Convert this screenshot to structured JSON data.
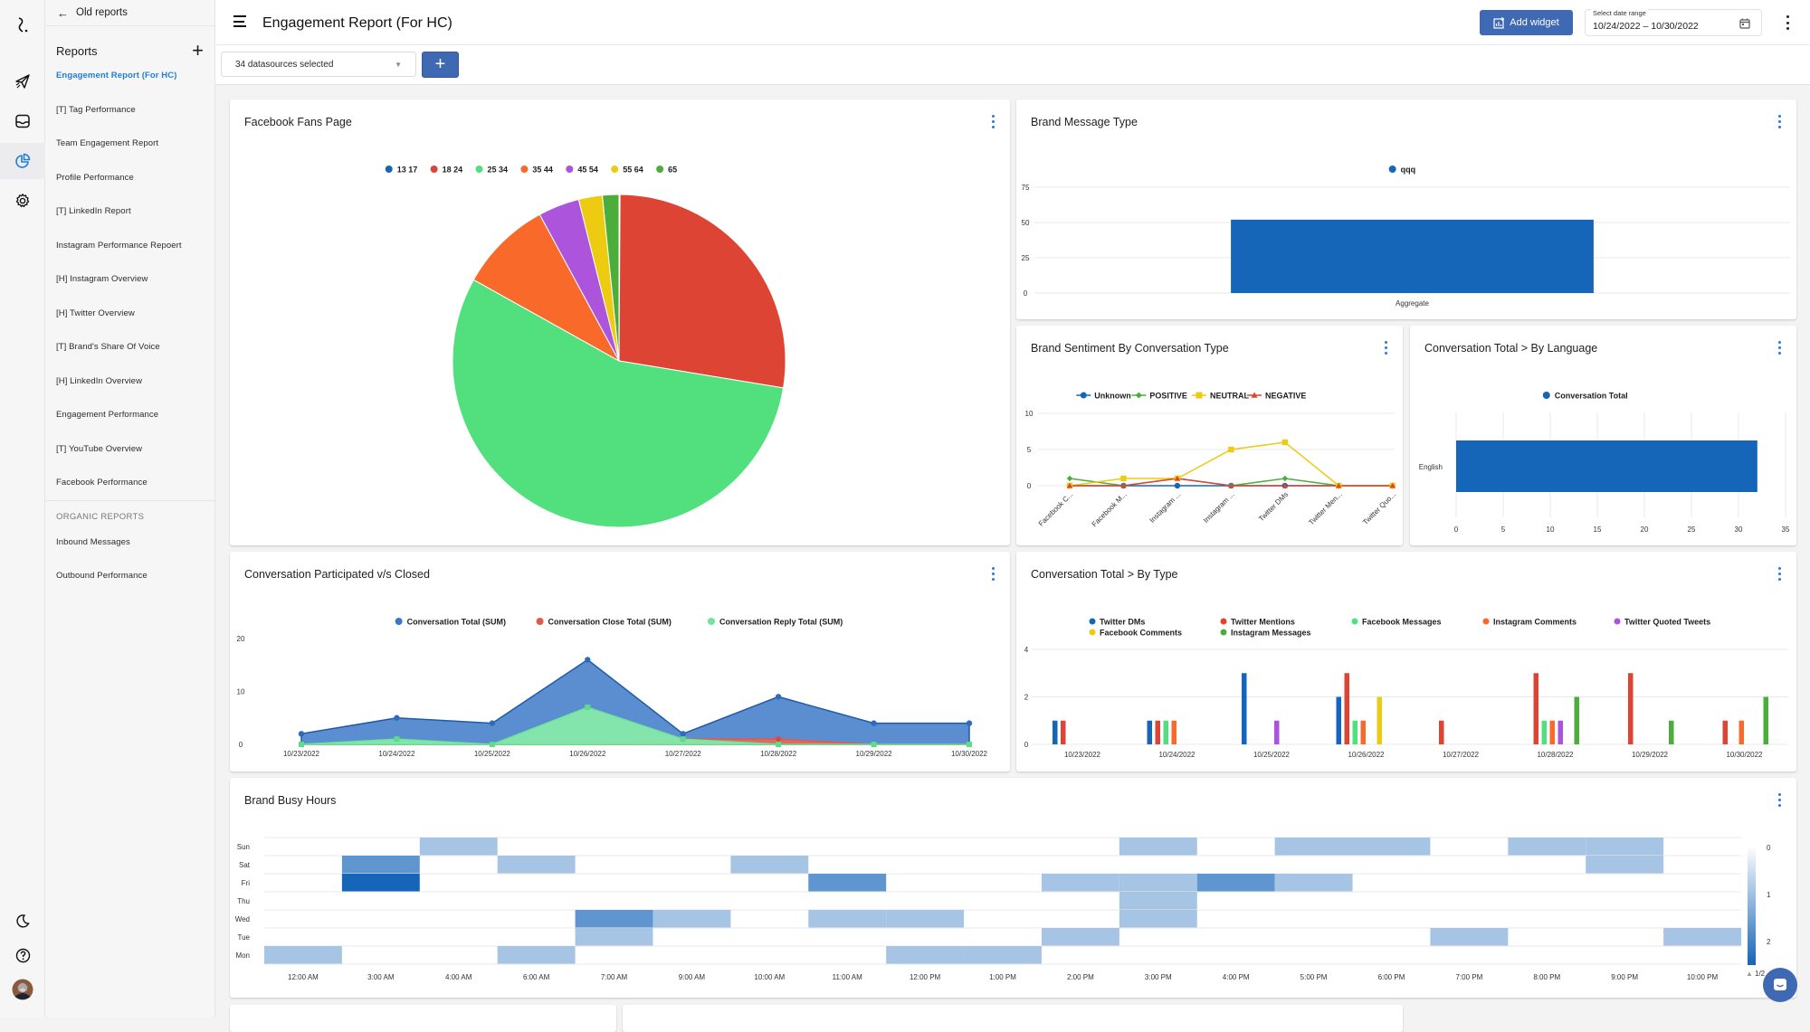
{
  "rail": {
    "logo": "logo-icon",
    "items": [
      {
        "icon": "paper-plane-icon",
        "label": "Publish"
      },
      {
        "icon": "inbox-icon",
        "label": "Inbox"
      },
      {
        "icon": "pie-chart-icon",
        "label": "Reports",
        "active": true
      },
      {
        "icon": "gear-icon",
        "label": "Settings"
      }
    ],
    "bottom": [
      {
        "icon": "moon-icon",
        "label": "Dark mode"
      },
      {
        "icon": "help-icon",
        "label": "Help"
      },
      {
        "icon": "avatar",
        "label": "User profile"
      }
    ]
  },
  "subnav": {
    "back_label": "Old reports",
    "reports_heading": "Reports",
    "reports": [
      {
        "label": "Engagement Report (For HC)",
        "active": true
      },
      {
        "label": "[T] Tag Performance"
      },
      {
        "label": "Team Engagement Report"
      },
      {
        "label": "Profile Performance"
      },
      {
        "label": "[T] LinkedIn Report"
      },
      {
        "label": "Instagram Performance Repoert"
      },
      {
        "label": "[H] Instagram Overview"
      },
      {
        "label": "[H] Twitter Overview"
      },
      {
        "label": "[T] Brand's Share Of Voice"
      },
      {
        "label": "[H] LinkedIn Overview"
      },
      {
        "label": "Engagement Performance"
      },
      {
        "label": "[T] YouTube Overview"
      },
      {
        "label": "Facebook Performance"
      }
    ],
    "organic_heading": "ORGANIC REPORTS",
    "organic": [
      {
        "label": "Inbound Messages"
      },
      {
        "label": "Outbound Performance"
      }
    ]
  },
  "header": {
    "title": "Engagement Report (For HC)",
    "add_widget_label": "Add widget",
    "date_range_label": "Select date range",
    "date_range_value": "10/24/2022 – 10/30/2022"
  },
  "toolbar": {
    "datasources_value": "34 datasources selected",
    "add_label": "+"
  },
  "colors": {
    "accent": "#3f69b3",
    "active_link": "#1e7ed8",
    "blue": "#1565b8",
    "red": "#dd4433",
    "light_green": "#52e07f",
    "orange": "#f8692a",
    "purple": "#ac55dc",
    "yellow": "#eccb10",
    "green": "#4cae3a"
  },
  "widgets": {
    "fans": {
      "title": "Facebook Fans Page"
    },
    "msgtype": {
      "title": "Brand Message Type"
    },
    "sentiment": {
      "title": "Brand Sentiment By Conversation Type"
    },
    "language": {
      "title": "Conversation Total > By Language"
    },
    "participated": {
      "title": "Conversation Participated v/s Closed"
    },
    "bytype": {
      "title": "Conversation Total > By Type"
    },
    "busy": {
      "title": "Brand Busy Hours",
      "legend_pager": "1/2"
    }
  },
  "chart_data": [
    {
      "id": "fans",
      "type": "pie",
      "title": "Facebook Fans Page",
      "legend_position": "top",
      "categories": [
        "13 17",
        "18 24",
        "25 34",
        "35 44",
        "45 54",
        "55 64",
        "65"
      ],
      "colors": [
        "#1565b8",
        "#dd4433",
        "#52e07f",
        "#f8692a",
        "#ac55dc",
        "#eccb10",
        "#4cae3a"
      ],
      "values": [
        0.1,
        27.5,
        55.5,
        9.0,
        4.0,
        2.3,
        1.6
      ]
    },
    {
      "id": "msgtype",
      "type": "bar",
      "title": "Brand Message Type",
      "categories": [
        "Aggregate"
      ],
      "series": [
        {
          "name": "qqq",
          "color": "#1565b8",
          "values": [
            52
          ]
        }
      ],
      "yticks": [
        0,
        25,
        50,
        75
      ],
      "ylim": [
        0,
        80
      ],
      "grid": true,
      "legend_position": "top"
    },
    {
      "id": "sentiment",
      "type": "line",
      "title": "Brand Sentiment By Conversation Type",
      "categories": [
        "Facebook C...",
        "Facebook M...",
        "Instagram ...",
        "Instagram ...",
        "Twitter DMs",
        "Twitter Men...",
        "Twitter Quo..."
      ],
      "series": [
        {
          "name": "Unknown",
          "color": "#1565b8",
          "marker": "circle",
          "values": [
            0,
            0,
            0,
            0,
            0,
            0,
            0
          ]
        },
        {
          "name": "POSITIVE",
          "color": "#4cae3a",
          "marker": "diamond",
          "values": [
            1,
            0,
            1,
            0,
            1,
            0,
            0
          ]
        },
        {
          "name": "NEUTRAL",
          "color": "#eccb10",
          "marker": "square",
          "values": [
            0,
            1,
            1,
            5,
            6,
            0,
            0
          ]
        },
        {
          "name": "NEGATIVE",
          "color": "#dd4433",
          "marker": "triangle",
          "values": [
            0,
            0,
            1,
            0,
            0,
            0,
            0
          ]
        }
      ],
      "yticks": [
        0,
        5,
        10
      ],
      "ylim": [
        0,
        10
      ],
      "grid": true,
      "legend_position": "top"
    },
    {
      "id": "language",
      "type": "bar",
      "orientation": "horizontal",
      "title": "Conversation Total > By Language",
      "categories": [
        "English"
      ],
      "series": [
        {
          "name": "Conversation Total",
          "color": "#1565b8",
          "values": [
            32
          ]
        }
      ],
      "xticks": [
        0,
        5,
        10,
        15,
        20,
        25,
        30,
        35
      ],
      "xlim": [
        0,
        35
      ],
      "grid": true,
      "legend_position": "top"
    },
    {
      "id": "participated",
      "type": "area",
      "title": "Conversation Participated v/s Closed",
      "categories": [
        "10/23/2022",
        "10/24/2022",
        "10/25/2022",
        "10/26/2022",
        "10/27/2022",
        "10/28/2022",
        "10/29/2022",
        "10/30/2022"
      ],
      "series": [
        {
          "name": "Conversation Total (SUM)",
          "color": "#3a78c4",
          "values": [
            2,
            5,
            4,
            16,
            2,
            9,
            4,
            4
          ]
        },
        {
          "name": "Conversation Close Total (SUM)",
          "color": "#e05a4c",
          "values": [
            0,
            0,
            0,
            0,
            1,
            1,
            0,
            0
          ]
        },
        {
          "name": "Conversation Reply Total (SUM)",
          "color": "#6fe49a",
          "values": [
            0,
            1,
            0,
            7,
            1,
            0,
            0,
            0
          ]
        }
      ],
      "yticks": [
        0,
        10,
        20
      ],
      "ylim": [
        0,
        20
      ],
      "legend_position": "top"
    },
    {
      "id": "bytype",
      "type": "bar",
      "title": "Conversation Total > By Type",
      "categories": [
        "10/23/2022",
        "10/24/2022",
        "10/25/2022",
        "10/26/2022",
        "10/27/2022",
        "10/28/2022",
        "10/29/2022",
        "10/30/2022"
      ],
      "series": [
        {
          "name": "Twitter DMs",
          "color": "#1565b8",
          "values": [
            1,
            1,
            3,
            2,
            0,
            0,
            0,
            0
          ]
        },
        {
          "name": "Twitter Mentions",
          "color": "#dd4433",
          "values": [
            1,
            1,
            0,
            3,
            1,
            3,
            3,
            1
          ]
        },
        {
          "name": "Facebook Messages",
          "color": "#52e07f",
          "values": [
            0,
            1,
            0,
            1,
            0,
            1,
            0,
            0
          ]
        },
        {
          "name": "Instagram Comments",
          "color": "#f8692a",
          "values": [
            0,
            1,
            0,
            1,
            0,
            1,
            0,
            1
          ]
        },
        {
          "name": "Twitter Quoted Tweets",
          "color": "#ac55dc",
          "values": [
            0,
            0,
            1,
            0,
            0,
            1,
            0,
            0
          ]
        },
        {
          "name": "Facebook Comments",
          "color": "#eccb10",
          "values": [
            0,
            0,
            0,
            2,
            0,
            0,
            0,
            0
          ]
        },
        {
          "name": "Instagram Messages",
          "color": "#4cae3a",
          "values": [
            0,
            0,
            0,
            0,
            0,
            2,
            1,
            2
          ]
        }
      ],
      "yticks": [
        0,
        2,
        4
      ],
      "ylim": [
        0,
        4
      ],
      "grid": true,
      "legend_position": "top"
    },
    {
      "id": "busy",
      "type": "heatmap",
      "title": "Brand Busy Hours",
      "x": [
        "12:00 AM",
        "3:00 AM",
        "4:00 AM",
        "6:00 AM",
        "7:00 AM",
        "9:00 AM",
        "10:00 AM",
        "11:00 AM",
        "12:00 PM",
        "1:00 PM",
        "2:00 PM",
        "3:00 PM",
        "4:00 PM",
        "5:00 PM",
        "6:00 PM",
        "7:00 PM",
        "8:00 PM",
        "9:00 PM",
        "10:00 PM"
      ],
      "y": [
        "Sun",
        "Sat",
        "Fri",
        "Thu",
        "Wed",
        "Tue",
        "Mon"
      ],
      "values": [
        [
          0,
          0,
          1,
          0,
          0,
          0,
          0,
          0,
          0,
          0,
          0,
          1,
          0,
          1,
          1,
          0,
          1,
          1,
          0
        ],
        [
          0,
          2,
          0,
          1,
          0,
          0,
          1,
          0,
          0,
          0,
          0,
          0,
          0,
          0,
          0,
          0,
          0,
          1,
          0
        ],
        [
          0,
          3,
          0,
          0,
          0,
          0,
          0,
          2,
          0,
          0,
          1,
          1,
          2,
          1,
          0,
          0,
          0,
          0,
          0
        ],
        [
          0,
          0,
          0,
          0,
          0,
          0,
          0,
          0,
          0,
          0,
          0,
          1,
          0,
          0,
          0,
          0,
          0,
          0,
          0
        ],
        [
          0,
          0,
          0,
          0,
          2,
          1,
          0,
          1,
          1,
          0,
          0,
          1,
          0,
          0,
          0,
          0,
          0,
          0,
          0
        ],
        [
          0,
          0,
          0,
          0,
          1,
          0,
          0,
          0,
          0,
          0,
          1,
          0,
          0,
          0,
          0,
          1,
          0,
          0,
          1
        ],
        [
          1,
          0,
          0,
          1,
          0,
          0,
          0,
          0,
          1,
          1,
          0,
          0,
          0,
          0,
          0,
          0,
          0,
          0,
          0
        ]
      ],
      "colorscale": {
        "min": 0,
        "max": 3,
        "low": "#ffffff",
        "high": "#1565b8"
      },
      "legend_ticks": [
        0,
        1,
        2
      ],
      "legend_position": "right"
    }
  ]
}
